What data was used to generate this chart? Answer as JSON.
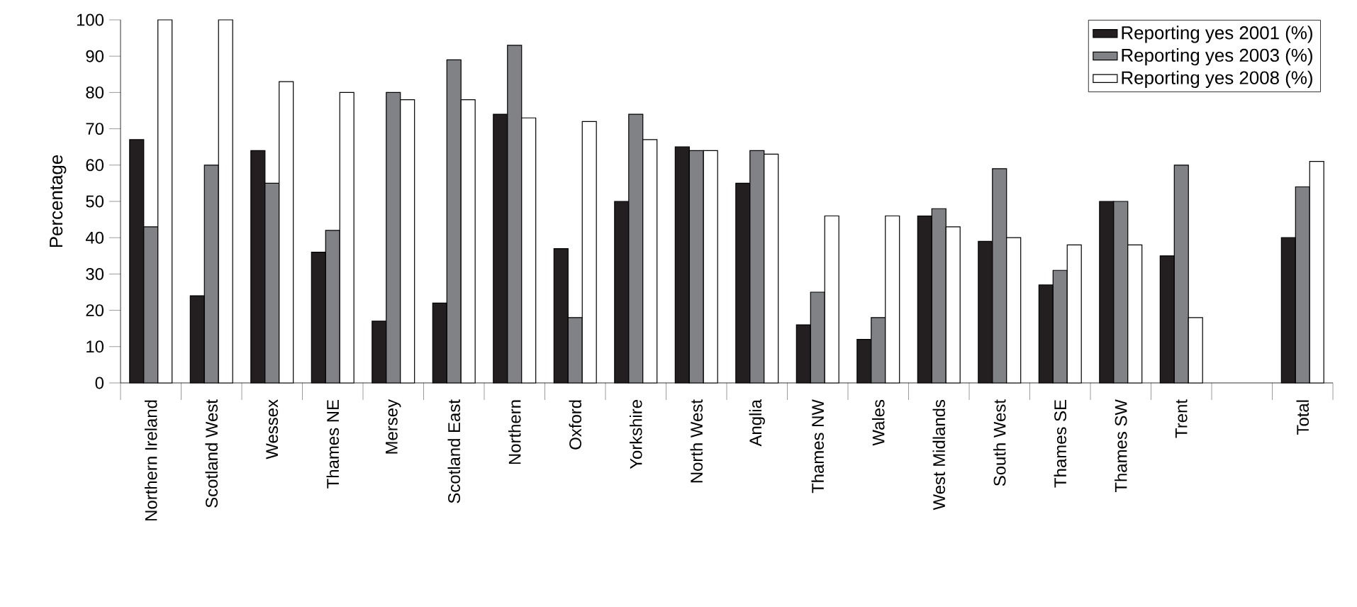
{
  "chart_data": {
    "type": "bar",
    "ylabel": "Percentage",
    "categories": [
      "Northern Ireland",
      "Scotland West",
      "Wessex",
      "Thames NE",
      "Mersey",
      "Scotland East",
      "Northern",
      "Oxford",
      "Yorkshire",
      "North West",
      "Anglia",
      "Thames NW",
      "Wales",
      "West Midlands",
      "South West",
      "Thames SE",
      "Thames SW",
      "Trent",
      null,
      "Total"
    ],
    "series": [
      {
        "name": "Reporting yes 2001 (%)",
        "color": "#231f20",
        "values": [
          67,
          24,
          64,
          36,
          17,
          22,
          74,
          37,
          50,
          65,
          55,
          16,
          12,
          46,
          39,
          27,
          50,
          35,
          null,
          40
        ]
      },
      {
        "name": "Reporting yes 2003 (%)",
        "color": "#808285",
        "values": [
          43,
          60,
          55,
          42,
          80,
          89,
          93,
          18,
          74,
          64,
          64,
          25,
          18,
          48,
          59,
          31,
          50,
          60,
          null,
          54
        ]
      },
      {
        "name": "Reporting yes 2008 (%)",
        "color": "#ffffff",
        "values": [
          100,
          100,
          83,
          80,
          78,
          78,
          73,
          72,
          67,
          64,
          63,
          46,
          46,
          43,
          40,
          38,
          38,
          18,
          null,
          61
        ]
      }
    ],
    "ylim": [
      0,
      100
    ],
    "yticks": [
      0,
      10,
      20,
      30,
      40,
      50,
      60,
      70,
      80,
      90,
      100
    ],
    "grid": false,
    "legend": "top right"
  }
}
